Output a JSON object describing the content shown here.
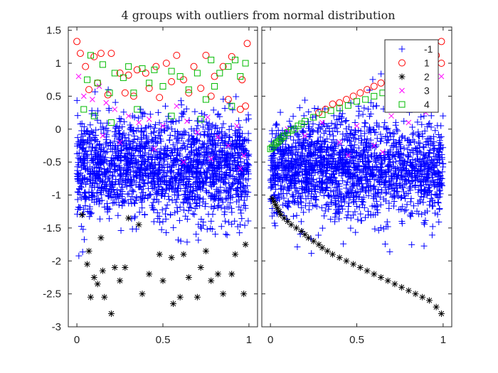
{
  "chart_data": {
    "type": "scatter",
    "title": "4 groups with outliers from normal distribution",
    "xlim": [
      -0.05,
      1.05
    ],
    "ylim": [
      -3,
      1.55
    ],
    "xticks": [
      0,
      0.5,
      1
    ],
    "xtick_labels": [
      "0",
      "0.5",
      "1"
    ],
    "yticks": [
      1.5,
      1,
      0.5,
      0,
      -0.5,
      -1,
      -1.5,
      -2,
      -2.5,
      -3
    ],
    "ytick_labels": [
      "1.5",
      "1",
      "0.5",
      "0",
      "-0.5",
      "-1",
      "-1.5",
      "-2",
      "-2.5",
      "-3"
    ],
    "legend": {
      "location": "top-right of second panel",
      "entries": [
        {
          "label": "-1",
          "marker": "plus",
          "color": "#0000ff"
        },
        {
          "label": "1",
          "marker": "circle",
          "color": "#ff0000"
        },
        {
          "label": "2",
          "marker": "asterisk",
          "color": "#000000"
        },
        {
          "label": "3",
          "marker": "x",
          "color": "#ff00ff"
        },
        {
          "label": "4",
          "marker": "square",
          "color": "#00bb00"
        }
      ]
    },
    "panels": [
      {
        "name": "left",
        "series": [
          {
            "group": "-1",
            "approx_points": 1800,
            "y_center": -0.6,
            "y_spread": 0.38,
            "x_range": [
              0,
              1
            ],
            "note": "dense blue cloud, occasional points to -2.8"
          },
          {
            "group": "1",
            "points": [
              [
                0.0,
                1.33
              ],
              [
                0.02,
                1.15
              ],
              [
                0.05,
                0.95
              ],
              [
                0.1,
                1.1
              ],
              [
                0.14,
                1.15
              ],
              [
                0.2,
                1.15
              ],
              [
                0.25,
                0.85
              ],
              [
                0.3,
                0.82
              ],
              [
                0.35,
                0.9
              ],
              [
                0.4,
                0.85
              ],
              [
                0.46,
                0.95
              ],
              [
                0.52,
                1.0
              ],
              [
                0.58,
                1.12
              ],
              [
                0.62,
                0.75
              ],
              [
                0.68,
                0.95
              ],
              [
                0.75,
                1.12
              ],
              [
                0.8,
                0.8
              ],
              [
                0.85,
                0.95
              ],
              [
                0.9,
                1.1
              ],
              [
                0.96,
                0.75
              ],
              [
                0.99,
                1.3
              ],
              [
                0.07,
                0.6
              ],
              [
                0.12,
                0.7
              ],
              [
                0.18,
                0.52
              ],
              [
                0.28,
                0.55
              ],
              [
                0.33,
                0.5
              ],
              [
                0.42,
                0.62
              ],
              [
                0.48,
                0.48
              ],
              [
                0.55,
                0.72
              ],
              [
                0.65,
                0.55
              ],
              [
                0.72,
                0.62
              ],
              [
                0.78,
                0.5
              ],
              [
                0.88,
                0.45
              ],
              [
                0.95,
                0.3
              ],
              [
                0.98,
                0.35
              ]
            ]
          },
          {
            "group": "2",
            "points": [
              [
                0.03,
                -1.3
              ],
              [
                0.06,
                -2.05
              ],
              [
                0.07,
                -1.85
              ],
              [
                0.08,
                -2.55
              ],
              [
                0.1,
                -2.25
              ],
              [
                0.12,
                -2.35
              ],
              [
                0.14,
                -1.65
              ],
              [
                0.15,
                -2.15
              ],
              [
                0.16,
                -2.55
              ],
              [
                0.2,
                -2.8
              ],
              [
                0.22,
                -2.1
              ],
              [
                0.25,
                -2.3
              ],
              [
                0.28,
                -2.1
              ],
              [
                0.3,
                -1.35
              ],
              [
                0.36,
                -1.45
              ],
              [
                0.38,
                -2.5
              ],
              [
                0.42,
                -2.2
              ],
              [
                0.48,
                -1.9
              ],
              [
                0.5,
                -2.3
              ],
              [
                0.55,
                -1.95
              ],
              [
                0.56,
                -2.65
              ],
              [
                0.6,
                -2.55
              ],
              [
                0.62,
                -1.9
              ],
              [
                0.65,
                -2.25
              ],
              [
                0.7,
                -2.55
              ],
              [
                0.72,
                -2.1
              ],
              [
                0.75,
                -1.85
              ],
              [
                0.78,
                -2.3
              ],
              [
                0.82,
                -2.2
              ],
              [
                0.85,
                -2.5
              ],
              [
                0.9,
                -2.2
              ],
              [
                0.92,
                -1.9
              ],
              [
                0.98,
                -1.75
              ],
              [
                0.97,
                -2.5
              ]
            ]
          },
          {
            "group": "3",
            "points": [
              [
                0.01,
                0.8
              ],
              [
                0.04,
                0.5
              ],
              [
                0.09,
                0.45
              ],
              [
                0.13,
                0.65
              ],
              [
                0.17,
                0.4
              ],
              [
                0.22,
                0.3
              ],
              [
                0.3,
                0.2
              ],
              [
                0.36,
                0.1
              ],
              [
                0.42,
                0.15
              ],
              [
                0.5,
                0.05
              ],
              [
                0.58,
                0.35
              ],
              [
                0.64,
                0.12
              ],
              [
                0.7,
                -0.05
              ],
              [
                0.76,
                0.18
              ],
              [
                0.82,
                -0.12
              ],
              [
                0.88,
                -0.25
              ],
              [
                0.93,
                0.05
              ],
              [
                0.97,
                -0.4
              ],
              [
                0.15,
                -0.1
              ],
              [
                0.25,
                -0.2
              ],
              [
                0.45,
                -0.3
              ],
              [
                0.62,
                -0.5
              ],
              [
                0.78,
                -0.45
              ],
              [
                0.95,
                -0.6
              ]
            ]
          },
          {
            "group": "4",
            "points": [
              [
                0.04,
                0.3
              ],
              [
                0.06,
                0.75
              ],
              [
                0.08,
                1.12
              ],
              [
                0.12,
                0.7
              ],
              [
                0.15,
                0.98
              ],
              [
                0.19,
                0.55
              ],
              [
                0.22,
                0.85
              ],
              [
                0.27,
                0.78
              ],
              [
                0.3,
                0.95
              ],
              [
                0.33,
                0.55
              ],
              [
                0.38,
                0.92
              ],
              [
                0.42,
                0.7
              ],
              [
                0.45,
                0.9
              ],
              [
                0.5,
                0.65
              ],
              [
                0.55,
                0.88
              ],
              [
                0.6,
                0.8
              ],
              [
                0.65,
                0.6
              ],
              [
                0.7,
                0.85
              ],
              [
                0.75,
                0.45
              ],
              [
                0.78,
                1.05
              ],
              [
                0.8,
                0.65
              ],
              [
                0.83,
                0.85
              ],
              [
                0.88,
                0.95
              ],
              [
                0.92,
                1.05
              ],
              [
                0.95,
                0.8
              ],
              [
                0.98,
                1.0
              ],
              [
                0.1,
                0.2
              ],
              [
                0.2,
                0.1
              ],
              [
                0.35,
                0.3
              ],
              [
                0.55,
                0.2
              ],
              [
                0.72,
                0.15
              ],
              [
                0.9,
                0.35
              ]
            ]
          }
        ]
      },
      {
        "name": "right",
        "series": [
          {
            "group": "-1",
            "approx_points": 1800,
            "y_center": -0.6,
            "y_spread": 0.38,
            "x_range": [
              0,
              1
            ],
            "note": "dense blue cloud"
          },
          {
            "group": "1",
            "points": [
              [
                0.28,
                0.25
              ],
              [
                0.32,
                0.3
              ],
              [
                0.36,
                0.38
              ],
              [
                0.4,
                0.4
              ],
              [
                0.44,
                0.45
              ],
              [
                0.48,
                0.5
              ],
              [
                0.52,
                0.55
              ],
              [
                0.56,
                0.6
              ],
              [
                0.6,
                0.65
              ],
              [
                0.64,
                0.7
              ],
              [
                0.68,
                0.75
              ],
              [
                0.72,
                0.8
              ],
              [
                0.76,
                0.85
              ],
              [
                0.8,
                0.9
              ],
              [
                0.84,
                0.95
              ],
              [
                0.88,
                1.0
              ],
              [
                0.92,
                1.05
              ],
              [
                0.96,
                1.12
              ],
              [
                0.99,
                1.33
              ],
              [
                0.99,
                1.0
              ]
            ]
          },
          {
            "group": "2",
            "points": [
              [
                0.01,
                -1.05
              ],
              [
                0.02,
                -1.1
              ],
              [
                0.03,
                -1.15
              ],
              [
                0.04,
                -1.2
              ],
              [
                0.05,
                -1.25
              ],
              [
                0.06,
                -1.3
              ],
              [
                0.08,
                -1.35
              ],
              [
                0.1,
                -1.4
              ],
              [
                0.12,
                -1.45
              ],
              [
                0.15,
                -1.5
              ],
              [
                0.18,
                -1.55
              ],
              [
                0.2,
                -1.6
              ],
              [
                0.22,
                -1.65
              ],
              [
                0.25,
                -1.7
              ],
              [
                0.28,
                -1.75
              ],
              [
                0.3,
                -1.8
              ],
              [
                0.33,
                -1.85
              ],
              [
                0.36,
                -1.9
              ],
              [
                0.4,
                -1.95
              ],
              [
                0.44,
                -2.0
              ],
              [
                0.48,
                -2.05
              ],
              [
                0.52,
                -2.1
              ],
              [
                0.56,
                -2.15
              ],
              [
                0.6,
                -2.2
              ],
              [
                0.64,
                -2.25
              ],
              [
                0.68,
                -2.3
              ],
              [
                0.72,
                -2.35
              ],
              [
                0.76,
                -2.4
              ],
              [
                0.8,
                -2.45
              ],
              [
                0.84,
                -2.5
              ],
              [
                0.88,
                -2.55
              ],
              [
                0.92,
                -2.6
              ],
              [
                0.96,
                -2.7
              ],
              [
                0.99,
                -2.8
              ]
            ]
          },
          {
            "group": "3",
            "points": [
              [
                0.1,
                0.0
              ],
              [
                0.2,
                -0.1
              ],
              [
                0.3,
                0.1
              ],
              [
                0.4,
                -0.2
              ],
              [
                0.5,
                0.05
              ],
              [
                0.6,
                -0.25
              ],
              [
                0.7,
                0.2
              ],
              [
                0.8,
                0.1
              ],
              [
                0.9,
                0.25
              ],
              [
                0.99,
                0.8
              ],
              [
                0.45,
                -0.4
              ],
              [
                0.65,
                -0.35
              ]
            ]
          },
          {
            "group": "4",
            "points": [
              [
                0.0,
                -0.3
              ],
              [
                0.01,
                -0.28
              ],
              [
                0.02,
                -0.25
              ],
              [
                0.03,
                -0.22
              ],
              [
                0.04,
                -0.2
              ],
              [
                0.05,
                -0.18
              ],
              [
                0.06,
                -0.15
              ],
              [
                0.07,
                -0.12
              ],
              [
                0.08,
                -0.1
              ],
              [
                0.1,
                -0.05
              ],
              [
                0.12,
                -0.02
              ],
              [
                0.14,
                0.0
              ],
              [
                0.16,
                0.05
              ],
              [
                0.18,
                0.08
              ],
              [
                0.2,
                0.12
              ],
              [
                0.25,
                0.18
              ],
              [
                0.3,
                0.22
              ],
              [
                0.35,
                0.28
              ],
              [
                0.4,
                0.32
              ],
              [
                0.45,
                0.36
              ],
              [
                0.5,
                0.42
              ],
              [
                0.55,
                0.45
              ],
              [
                0.6,
                0.5
              ],
              [
                0.65,
                0.55
              ],
              [
                0.7,
                0.6
              ],
              [
                0.75,
                0.65
              ]
            ]
          }
        ]
      }
    ]
  }
}
